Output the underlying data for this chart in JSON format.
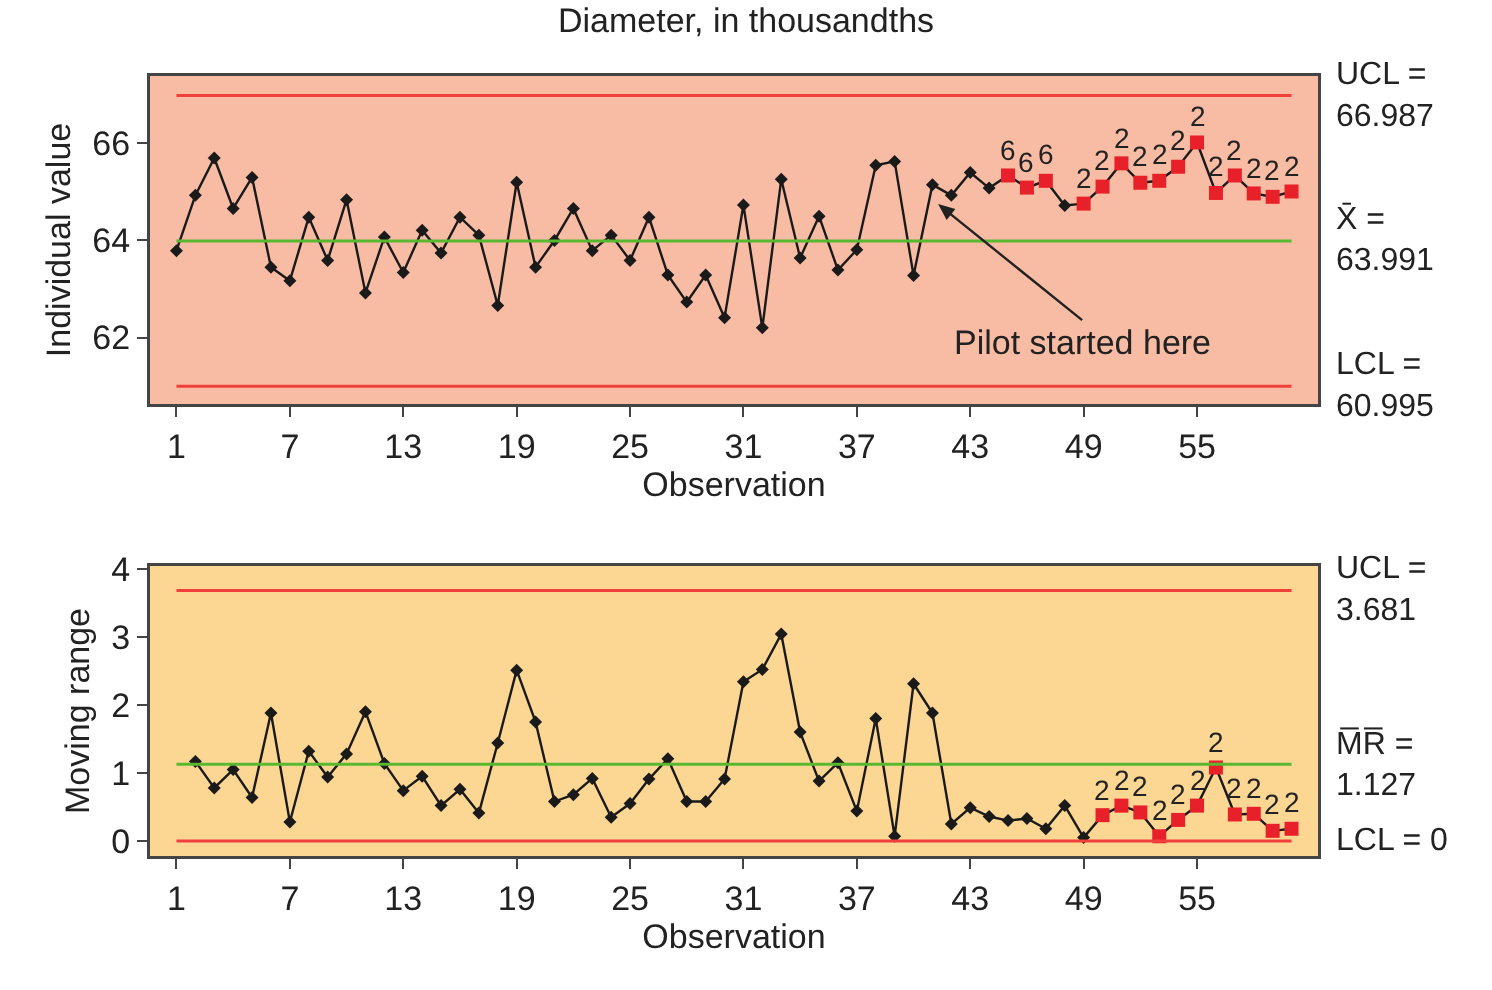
{
  "chart_data": [
    {
      "type": "line",
      "title": "Diameter, in thousandths",
      "xlabel": "Observation",
      "ylabel": "Individual value",
      "x": [
        1,
        2,
        3,
        4,
        5,
        6,
        7,
        8,
        9,
        10,
        11,
        12,
        13,
        14,
        15,
        16,
        17,
        18,
        19,
        20,
        21,
        22,
        23,
        24,
        25,
        26,
        27,
        28,
        29,
        30,
        31,
        32,
        33,
        34,
        35,
        36,
        37,
        38,
        39,
        40,
        41,
        42,
        43,
        44,
        45,
        46,
        47,
        48,
        49,
        50,
        51,
        52,
        53,
        54,
        55,
        56,
        57,
        58,
        59,
        60
      ],
      "xlim": [
        -0.4,
        61.4
      ],
      "xticks": [
        1,
        7,
        13,
        19,
        25,
        31,
        37,
        43,
        49,
        55
      ],
      "ylim": [
        60.63,
        67.39
      ],
      "yticks": [
        62,
        64,
        66
      ],
      "grid": false,
      "series": [
        {
          "type": "line",
          "color": "#1a1a1a",
          "marker": "diamond",
          "values": [
            63.79,
            64.93,
            65.7,
            64.66,
            65.3,
            63.45,
            63.17,
            64.48,
            63.59,
            64.84,
            62.92,
            64.07,
            63.34,
            64.21,
            63.74,
            64.48,
            64.11,
            62.66,
            65.2,
            63.45,
            64.0,
            64.66,
            63.79,
            64.11,
            63.59,
            64.48,
            63.29,
            62.73,
            63.29,
            62.41,
            64.73,
            62.2,
            65.26,
            63.64,
            64.5,
            63.39,
            63.81,
            65.55,
            65.63,
            63.28,
            65.15,
            64.93,
            65.4,
            65.08,
            65.34,
            65.09,
            65.23,
            64.72,
            64.76,
            65.11,
            65.59,
            65.19,
            65.23,
            65.52,
            66.02,
            64.98,
            65.34,
            64.97,
            64.9,
            65.01
          ]
        },
        {
          "type": "scatter",
          "color": "#e8202a",
          "marker": "square",
          "values": [
            null,
            null,
            null,
            null,
            null,
            null,
            null,
            null,
            null,
            null,
            null,
            null,
            null,
            null,
            null,
            null,
            null,
            null,
            null,
            null,
            null,
            null,
            null,
            null,
            null,
            null,
            null,
            null,
            null,
            null,
            null,
            null,
            null,
            null,
            null,
            null,
            null,
            null,
            null,
            null,
            null,
            null,
            null,
            null,
            65.34,
            65.09,
            65.23,
            null,
            64.76,
            65.11,
            65.59,
            65.19,
            65.23,
            65.52,
            66.02,
            64.98,
            65.34,
            64.97,
            64.9,
            65.01
          ]
        }
      ],
      "ref_lines": [
        {
          "axis": "y",
          "value": 66.987,
          "label": "UCL =\n66.987",
          "color": "#f0403c"
        },
        {
          "axis": "y",
          "value": 63.991,
          "label": "X̄ =\n63.991",
          "color": "#58b830"
        },
        {
          "axis": "y",
          "value": 60.995,
          "label": "LCL =\n60.995",
          "color": "#f0403c"
        }
      ],
      "annotations": [
        {
          "text": "Pilot started here",
          "x": 41.3,
          "y": 64.75
        },
        {
          "text": "6",
          "x": 45,
          "y": 65.34
        },
        {
          "text": "6",
          "x": 46,
          "y": 65.09
        },
        {
          "text": "6",
          "x": 47,
          "y": 65.23
        },
        {
          "text": "2",
          "x": 49,
          "y": 64.76
        },
        {
          "text": "2",
          "x": 50,
          "y": 65.11
        },
        {
          "text": "2",
          "x": 51,
          "y": 65.59
        },
        {
          "text": "2",
          "x": 52,
          "y": 65.19
        },
        {
          "text": "2",
          "x": 53,
          "y": 65.23
        },
        {
          "text": "2",
          "x": 54,
          "y": 65.52
        },
        {
          "text": "2",
          "x": 55,
          "y": 66.02
        },
        {
          "text": "2",
          "x": 56,
          "y": 64.98
        },
        {
          "text": "2",
          "x": 57,
          "y": 65.34
        },
        {
          "text": "2",
          "x": 58,
          "y": 64.97
        },
        {
          "text": "2",
          "x": 59,
          "y": 64.9
        },
        {
          "text": "2",
          "x": 60,
          "y": 65.01
        }
      ]
    },
    {
      "type": "line",
      "xlabel": "Observation",
      "ylabel": "Moving range",
      "x": [
        2,
        3,
        4,
        5,
        6,
        7,
        8,
        9,
        10,
        11,
        12,
        13,
        14,
        15,
        16,
        17,
        18,
        19,
        20,
        21,
        22,
        23,
        24,
        25,
        26,
        27,
        28,
        29,
        30,
        31,
        32,
        33,
        34,
        35,
        36,
        37,
        38,
        39,
        40,
        41,
        42,
        43,
        44,
        45,
        46,
        47,
        48,
        49,
        50,
        51,
        52,
        53,
        54,
        55,
        56,
        57,
        58,
        59,
        60
      ],
      "xlim": [
        -0.4,
        61.4
      ],
      "xticks": [
        1,
        7,
        13,
        19,
        25,
        31,
        37,
        43,
        49,
        55
      ],
      "ylim": [
        -0.22,
        4.04
      ],
      "yticks": [
        0,
        1,
        2,
        3,
        4
      ],
      "grid": false,
      "series": [
        {
          "type": "line",
          "color": "#1a1a1a",
          "marker": "diamond",
          "values": [
            1.17,
            0.78,
            1.05,
            0.64,
            1.88,
            0.28,
            1.32,
            0.94,
            1.28,
            1.9,
            1.14,
            0.74,
            0.95,
            0.52,
            0.76,
            0.41,
            1.44,
            2.51,
            1.75,
            0.58,
            0.68,
            0.92,
            0.35,
            0.55,
            0.91,
            1.21,
            0.58,
            0.58,
            0.91,
            2.34,
            2.52,
            3.04,
            1.6,
            0.88,
            1.15,
            0.44,
            1.8,
            0.07,
            2.31,
            1.88,
            0.25,
            0.49,
            0.36,
            0.3,
            0.33,
            0.18,
            0.52,
            0.05,
            0.38,
            0.52,
            0.42,
            0.07,
            0.31,
            0.52,
            1.08,
            0.39,
            0.4,
            0.15,
            0.18
          ]
        },
        {
          "type": "scatter",
          "color": "#e8202a",
          "marker": "square",
          "values": [
            null,
            null,
            null,
            null,
            null,
            null,
            null,
            null,
            null,
            null,
            null,
            null,
            null,
            null,
            null,
            null,
            null,
            null,
            null,
            null,
            null,
            null,
            null,
            null,
            null,
            null,
            null,
            null,
            null,
            null,
            null,
            null,
            null,
            null,
            null,
            null,
            null,
            null,
            null,
            null,
            null,
            null,
            null,
            null,
            null,
            null,
            null,
            null,
            0.38,
            0.52,
            0.42,
            0.07,
            0.31,
            0.52,
            1.08,
            0.39,
            0.4,
            0.15,
            0.18
          ]
        }
      ],
      "ref_lines": [
        {
          "axis": "y",
          "value": 3.681,
          "label": "UCL =\n3.681",
          "color": "#f0403c"
        },
        {
          "axis": "y",
          "value": 1.127,
          "label": "M̅R̅ =\n1.127",
          "color": "#58b830"
        },
        {
          "axis": "y",
          "value": 0,
          "label": "LCL = 0",
          "color": "#f0403c"
        }
      ],
      "annotations": [
        {
          "text": "2",
          "x": 50,
          "y": 0.38
        },
        {
          "text": "2",
          "x": 51,
          "y": 0.52
        },
        {
          "text": "2",
          "x": 52,
          "y": 0.42
        },
        {
          "text": "2",
          "x": 53,
          "y": 0.07
        },
        {
          "text": "2",
          "x": 54,
          "y": 0.31
        },
        {
          "text": "2",
          "x": 55,
          "y": 0.52
        },
        {
          "text": "2",
          "x": 56,
          "y": 1.08
        },
        {
          "text": "2",
          "x": 57,
          "y": 0.39
        },
        {
          "text": "2",
          "x": 58,
          "y": 0.4
        },
        {
          "text": "2",
          "x": 59,
          "y": 0.15
        },
        {
          "text": "2",
          "x": 60,
          "y": 0.18
        }
      ]
    }
  ]
}
